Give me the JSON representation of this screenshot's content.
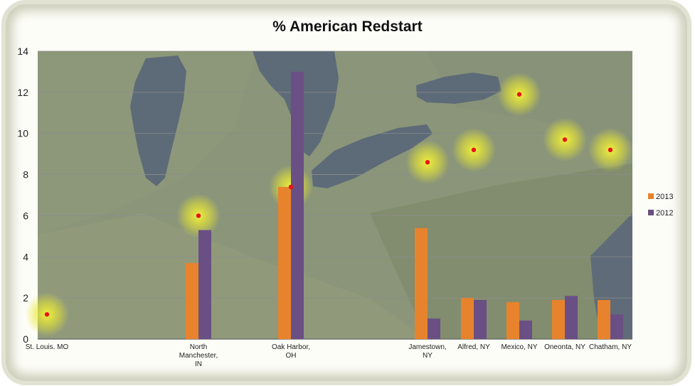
{
  "chart_data": {
    "type": "bar",
    "title": "% American Redstart",
    "xlabel": "",
    "ylabel": "",
    "ylim": [
      0,
      14
    ],
    "yticks": [
      0,
      2,
      4,
      6,
      8,
      10,
      12,
      14
    ],
    "grid": true,
    "legend_position": "right",
    "background": "satellite map of the Great Lakes region",
    "categories": [
      "St. Louis. MO",
      "North Manchester, IN",
      "Oak Harbor, OH",
      "Jamestown, NY",
      "Alfred, NY",
      "Mexico, NY",
      "Oneonta, NY",
      "Chatham, NY"
    ],
    "category_lines": [
      [
        "St. Louis. MO"
      ],
      [
        "North",
        "Manchester,",
        "IN"
      ],
      [
        "Oak Harbor,",
        "OH"
      ],
      [
        "Jamestown,",
        "NY"
      ],
      [
        "Alfred, NY"
      ],
      [
        "Mexico, NY"
      ],
      [
        "Oneonta, NY"
      ],
      [
        "Chatham, NY"
      ]
    ],
    "series": [
      {
        "name": "2013",
        "color": "#e7832c",
        "values": [
          0,
          3.7,
          7.4,
          5.4,
          2.0,
          1.8,
          1.9,
          1.9
        ]
      },
      {
        "name": "2012",
        "color": "#6a4f84",
        "values": [
          0,
          5.3,
          13.0,
          1.0,
          1.9,
          0.9,
          2.1,
          1.2
        ]
      }
    ],
    "location_markers": [
      {
        "name": "St. Louis. MO",
        "value": 1.2
      },
      {
        "name": "North Manchester, IN",
        "value": 6.0
      },
      {
        "name": "Oak Harbor, OH",
        "value": 7.4
      },
      {
        "name": "Jamestown, NY",
        "value": 8.6
      },
      {
        "name": "Alfred, NY",
        "value": 9.2
      },
      {
        "name": "Mexico, NY",
        "value": 11.9
      },
      {
        "name": "Oneonta, NY",
        "value": 9.7
      },
      {
        "name": "Chatham, NY",
        "value": 9.2
      }
    ]
  }
}
